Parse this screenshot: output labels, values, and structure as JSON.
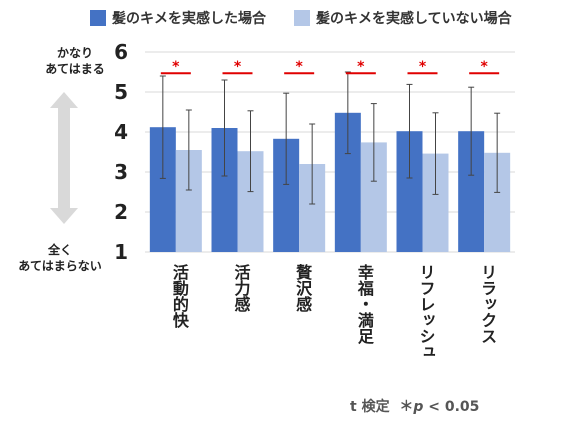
{
  "legend": {
    "series1": "髪のキメを実感した場合",
    "series2": "髪のキメを実感していない場合"
  },
  "scale_top_label": "かなり\nあてはまる",
  "scale_bottom_label": "全く\nあてはまらない",
  "footnote": {
    "test": "t 検定",
    "star": "＊",
    "p": "p",
    "threshold": "< 0.05"
  },
  "colors": {
    "series1": "#4472C4",
    "series2": "#B4C7E7",
    "significance": "#E00000",
    "arrow": "#D9D9D9",
    "grid": "#D9D9D9"
  },
  "chart_data": {
    "type": "bar",
    "categories": [
      "活動的快",
      "活力感",
      "贅沢感",
      "幸福・満足",
      "リフレッシュ",
      "リラックス"
    ],
    "series": [
      {
        "name": "髪のキメを実感した場合",
        "values": [
          4.12,
          4.1,
          3.83,
          4.48,
          4.02,
          4.02
        ],
        "error": [
          1.28,
          1.2,
          1.14,
          1.02,
          1.17,
          1.1
        ]
      },
      {
        "name": "髪のキメを実感していない場合",
        "values": [
          3.55,
          3.52,
          3.2,
          3.74,
          3.46,
          3.48
        ],
        "error": [
          1.0,
          1.01,
          1.0,
          0.97,
          1.02,
          0.99
        ]
      }
    ],
    "significance_marker": "＊",
    "significant": [
      true,
      true,
      true,
      true,
      true,
      true
    ],
    "ylim": [
      1,
      6
    ],
    "yticks": [
      1,
      2,
      3,
      4,
      5,
      6
    ],
    "grid": true
  }
}
